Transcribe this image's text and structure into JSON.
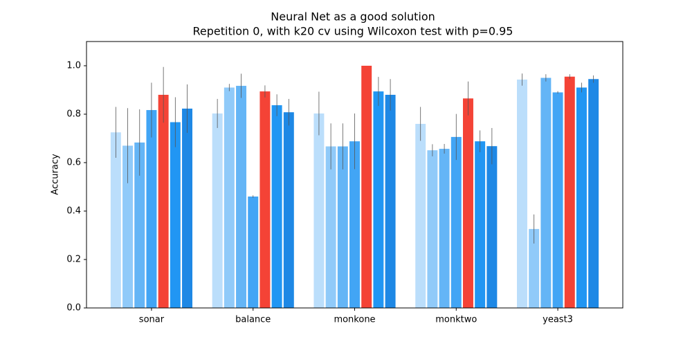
{
  "chart_data": {
    "type": "bar",
    "title": "Neural Net as a good solution",
    "subtitle": "Repetition 0, with k20 cv using Wilcoxon test with p=0.95",
    "y_label": "Accuracy",
    "categories": [
      "sonar",
      "balance",
      "monkone",
      "monktwo",
      "yeast3"
    ],
    "series": [
      {
        "color": "#bbdefb",
        "values": [
          0.725,
          0.803,
          0.803,
          0.76,
          0.943
        ],
        "errors": [
          0.105,
          0.06,
          0.09,
          0.07,
          0.025
        ]
      },
      {
        "color": "#90caf9",
        "values": [
          0.67,
          0.91,
          0.667,
          0.651,
          0.326
        ],
        "errors": [
          0.155,
          0.015,
          0.095,
          0.025,
          0.06
        ]
      },
      {
        "color": "#64b5f6",
        "values": [
          0.683,
          0.917,
          0.667,
          0.657,
          0.95
        ],
        "errors": [
          0.137,
          0.05,
          0.095,
          0.02,
          0.015
        ]
      },
      {
        "color": "#42a5f5",
        "values": [
          0.817,
          0.46,
          0.688,
          0.706,
          0.89
        ],
        "errors": [
          0.113,
          0.005,
          0.115,
          0.095,
          0.005
        ]
      },
      {
        "color": "#f44336",
        "values": [
          0.88,
          0.894,
          1.0,
          0.865,
          0.955
        ],
        "errors": [
          0.115,
          0.025,
          0,
          0.07,
          0.01
        ]
      },
      {
        "color": "#2196f3",
        "values": [
          0.767,
          0.837,
          0.894,
          0.688,
          0.91
        ],
        "errors": [
          0.103,
          0.045,
          0.06,
          0.045,
          0.02
        ]
      },
      {
        "color": "#1e88e5",
        "values": [
          0.823,
          0.808,
          0.88,
          0.668,
          0.945
        ],
        "errors": [
          0.1,
          0.055,
          0.065,
          0.075,
          0.015
        ]
      }
    ],
    "error_color": "#555555",
    "ylim": [
      0,
      1.1
    ],
    "yticks": [
      {
        "value": 0,
        "label": "0.0"
      },
      {
        "value": 0.2,
        "label": "0.2"
      },
      {
        "value": 0.4,
        "label": "0.4"
      },
      {
        "value": 0.6,
        "label": "0.6"
      },
      {
        "value": 0.8,
        "label": "0.8"
      },
      {
        "value": 1.0,
        "label": "1.0"
      }
    ]
  }
}
